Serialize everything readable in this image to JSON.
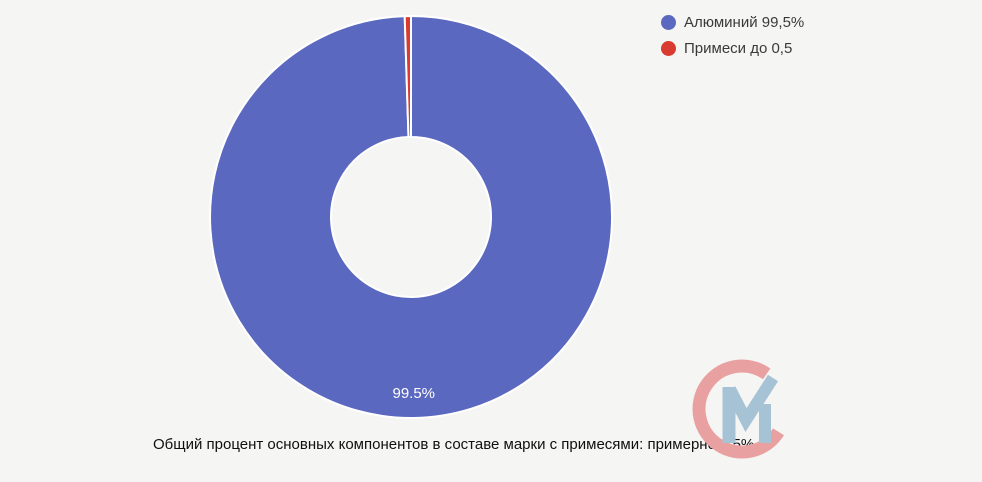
{
  "page": {
    "background": "#f5f5f4"
  },
  "chart_data": {
    "type": "pie",
    "subtype": "donut",
    "direction": "clockwise",
    "start_angle_deg": 0,
    "inner_radius_ratio": 0.4,
    "slice_border_color": "#ffffff",
    "legend_position": "top-right",
    "series": [
      {
        "label": "Алюминий 99,5%",
        "value": 99.5,
        "color": "#5b68bf",
        "slice_label": "99.5%"
      },
      {
        "label": "Примеси до 0,5",
        "value": 0.5,
        "color": "#d93b30",
        "slice_label": ""
      }
    ]
  },
  "caption": "Общий процент основных компонентов в составе марки с примесями: примерно 0,5%",
  "logo": {
    "name": "cm-watermark",
    "c_color": "#e9a0a0",
    "m_color": "#a6c3d6"
  }
}
